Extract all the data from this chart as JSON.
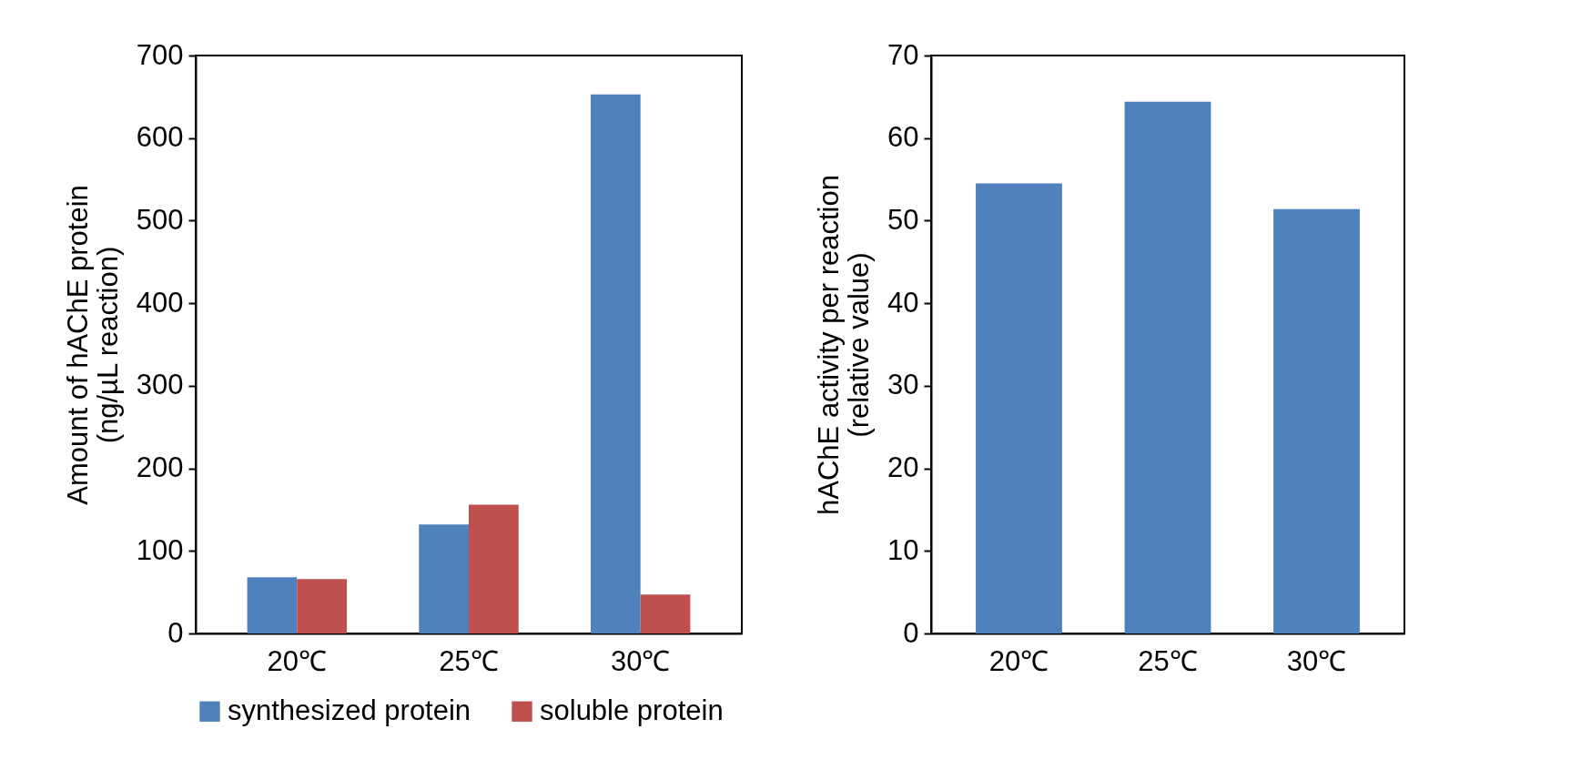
{
  "chart_data": [
    {
      "type": "bar",
      "categories": [
        "20℃",
        "25℃",
        "30℃"
      ],
      "ylabel": "Amount  of hAChE protein\n(ng/µL reaction)",
      "ylim": [
        0,
        700
      ],
      "yticks": [
        0,
        100,
        200,
        300,
        400,
        500,
        600,
        700
      ],
      "grid": false,
      "legend": "bottom",
      "series": [
        {
          "name": "synthesized protein",
          "color": "#4f81bd",
          "values": [
            68,
            132,
            653
          ]
        },
        {
          "name": "soluble protein",
          "color": "#c0504d",
          "values": [
            66,
            156,
            47
          ]
        }
      ]
    },
    {
      "type": "bar",
      "categories": [
        "20℃",
        "25℃",
        "30℃"
      ],
      "ylabel": "hAChE activity per reaction\n(relative value)",
      "ylim": [
        0,
        70
      ],
      "yticks": [
        0,
        10,
        20,
        30,
        40,
        50,
        60,
        70
      ],
      "grid": false,
      "series": [
        {
          "color": "#4f81bd",
          "values": [
            54.5,
            64.4,
            51.4
          ]
        }
      ]
    }
  ]
}
